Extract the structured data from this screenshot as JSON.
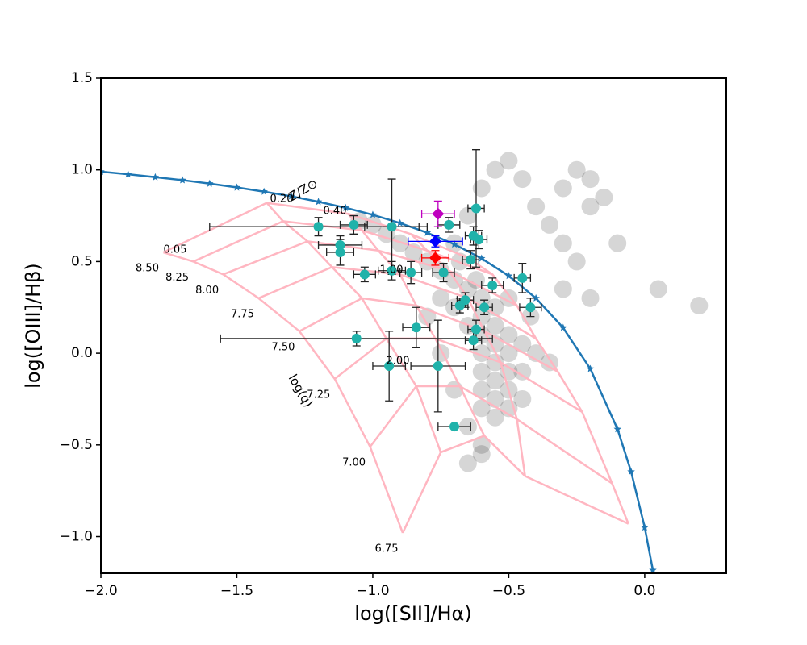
{
  "chart_data": {
    "type": "scatter",
    "xlabel": "log([SII]/Hα)",
    "ylabel": "log([OIII]/Hβ)",
    "xlim": [
      -2.0,
      0.3
    ],
    "ylim": [
      -1.2,
      1.5
    ],
    "xticks": [
      {
        "value": -2.0,
        "label": "−2.0"
      },
      {
        "value": -1.5,
        "label": "−1.5"
      },
      {
        "value": -1.0,
        "label": "−1.0"
      },
      {
        "value": -0.5,
        "label": "−0.5"
      },
      {
        "value": 0.0,
        "label": "0.0"
      }
    ],
    "yticks": [
      {
        "value": -1.0,
        "label": "−1.0"
      },
      {
        "value": -0.5,
        "label": "−0.5"
      },
      {
        "value": 0.0,
        "label": "0.0"
      },
      0.5,
      {
        "value": 1.0,
        "label": "1.0"
      },
      1.5
    ],
    "annotations": [
      "Z/Z⊙",
      "log(q)"
    ],
    "background": {
      "color": "#333333",
      "x": [
        -0.85,
        -0.8,
        -0.75,
        -0.7,
        -0.65,
        -0.6,
        -0.55,
        -0.6,
        -0.55,
        -0.5,
        -0.6,
        -0.55,
        -0.5,
        -0.6,
        -0.55,
        -0.5,
        -0.6,
        -0.55,
        -0.5,
        -0.6,
        -0.55,
        -0.5,
        -0.55,
        -0.6,
        -0.45,
        -0.45,
        -0.65,
        -0.7,
        -0.75,
        -0.9,
        -0.95,
        -1.0,
        -1.05,
        -0.68,
        -0.62,
        -0.5,
        -0.42,
        -0.4,
        -0.45,
        -0.65,
        -0.6,
        -0.7,
        -0.75,
        -0.8,
        -0.3,
        -0.25,
        -0.2,
        -0.35,
        -0.3,
        -0.4,
        -0.45,
        -0.5,
        -0.55,
        -0.2,
        -0.15,
        -0.25,
        -0.1,
        -0.3,
        -0.2,
        -0.35,
        0.05,
        0.2,
        -0.6,
        -0.65,
        -0.7,
        -0.65,
        -0.6
      ],
      "y": [
        0.55,
        0.5,
        0.45,
        0.4,
        0.35,
        0.3,
        0.25,
        0.2,
        0.15,
        0.1,
        0.1,
        0.05,
        0.0,
        0.0,
        -0.05,
        -0.1,
        -0.1,
        -0.15,
        -0.2,
        -0.2,
        -0.25,
        -0.3,
        -0.35,
        -0.3,
        -0.1,
        0.05,
        0.15,
        0.25,
        0.3,
        0.6,
        0.65,
        0.7,
        0.72,
        0.5,
        0.4,
        0.3,
        0.2,
        0.0,
        -0.25,
        -0.4,
        -0.5,
        -0.2,
        0.0,
        0.2,
        0.9,
        1.0,
        0.95,
        0.7,
        0.6,
        0.8,
        0.95,
        1.05,
        1.0,
        0.8,
        0.85,
        0.5,
        0.6,
        0.35,
        0.3,
        -0.05,
        0.35,
        0.26,
        -0.55,
        -0.6,
        0.6,
        0.75,
        0.9
      ]
    },
    "demarcation": {
      "color": "#1f77b4",
      "x": [
        -2.0,
        -1.9,
        -1.8,
        -1.7,
        -1.6,
        -1.5,
        -1.4,
        -1.3,
        -1.2,
        -1.1,
        -1.0,
        -0.9,
        -0.8,
        -0.7,
        -0.6,
        -0.5,
        -0.4,
        -0.3,
        -0.2,
        -0.1,
        -0.05,
        0.0,
        0.03
      ],
      "y": [
        0.99,
        0.976,
        0.96,
        0.944,
        0.925,
        0.904,
        0.881,
        0.856,
        0.826,
        0.793,
        0.755,
        0.71,
        0.657,
        0.594,
        0.517,
        0.422,
        0.3,
        0.139,
        -0.085,
        -0.414,
        -0.646,
        -0.95,
        -1.183
      ]
    },
    "model_grid": {
      "color": "#ffb6c1",
      "metallicity_labels": [
        "0.05",
        "0.20",
        "0.40",
        "1.00",
        "2.00"
      ],
      "q_labels": [
        "8.50",
        "8.25",
        "8.00",
        "7.75",
        "7.50",
        "7.25",
        "7.00",
        "6.75"
      ],
      "lines": [
        {
          "x": [
            -1.77,
            -1.66,
            -1.55,
            -1.42,
            -1.27,
            -1.14,
            -1.01,
            -0.89
          ],
          "y": [
            0.55,
            0.5,
            0.43,
            0.3,
            0.12,
            -0.14,
            -0.51,
            -0.98
          ]
        },
        {
          "x": [
            -1.39,
            -1.33,
            -1.24,
            -1.15,
            -1.04,
            -0.95,
            -0.84,
            -0.75
          ],
          "y": [
            0.82,
            0.72,
            0.61,
            0.47,
            0.3,
            0.08,
            -0.18,
            -0.54
          ]
        },
        {
          "x": [
            -1.09,
            -1.04,
            -0.98,
            -0.9,
            -0.84,
            -0.77,
            -0.68,
            -0.59
          ],
          "y": [
            0.76,
            0.67,
            0.56,
            0.43,
            0.26,
            0.08,
            -0.18,
            -0.45
          ]
        },
        {
          "x": [
            -0.86,
            -0.8,
            -0.72,
            -0.65,
            -0.59,
            -0.53,
            -0.47,
            -0.44
          ],
          "y": [
            0.65,
            0.56,
            0.45,
            0.3,
            0.12,
            -0.05,
            -0.36,
            -0.67
          ]
        },
        {
          "x": [
            -0.65,
            -0.56,
            -0.47,
            -0.4,
            -0.32,
            -0.23,
            -0.12,
            -0.06
          ],
          "y": [
            0.52,
            0.43,
            0.26,
            0.08,
            -0.1,
            -0.32,
            -0.71,
            -0.93
          ]
        }
      ]
    },
    "points": {
      "color": "#20b2aa",
      "x": [
        -1.2,
        -1.07,
        -0.93,
        -1.12,
        -1.12,
        -1.03,
        -0.93,
        -0.86,
        -0.74,
        -0.62,
        -0.63,
        -0.61,
        -0.72,
        -0.64,
        -0.56,
        -0.45,
        -0.42,
        -0.59,
        -0.66,
        -0.68,
        -0.62,
        -0.63,
        -1.06,
        -0.84,
        -0.94,
        -0.76,
        -0.7
      ],
      "y": [
        0.69,
        0.7,
        0.69,
        0.59,
        0.55,
        0.43,
        0.45,
        0.44,
        0.44,
        0.79,
        0.64,
        0.62,
        0.7,
        0.51,
        0.37,
        0.41,
        0.25,
        0.25,
        0.29,
        0.26,
        0.13,
        0.07,
        0.08,
        0.14,
        -0.07,
        -0.07,
        -0.4
      ],
      "xerr": [
        0.4,
        0.05,
        0.1,
        0.08,
        0.05,
        0.04,
        0.05,
        0.04,
        0.04,
        0.03,
        0.03,
        0.03,
        0.04,
        0.03,
        0.04,
        0.03,
        0.04,
        0.03,
        0.03,
        0.03,
        0.03,
        0.03,
        0.5,
        0.05,
        0.06,
        0.1,
        0.06
      ],
      "yerr": [
        0.05,
        0.05,
        0.26,
        0.05,
        0.07,
        0.04,
        0.05,
        0.06,
        0.05,
        0.32,
        0.05,
        0.05,
        0.04,
        0.05,
        0.04,
        0.08,
        0.05,
        0.04,
        0.04,
        0.04,
        0.05,
        0.05,
        0.04,
        0.11,
        0.19,
        0.25,
        0.01
      ]
    },
    "highlighted": [
      {
        "color": "#bf00bf",
        "x": -0.76,
        "y": 0.76,
        "xerr": 0.06,
        "yerr": 0.07
      },
      {
        "color": "#0000ff",
        "x": -0.77,
        "y": 0.61,
        "xerr": 0.1,
        "yerr": 0.03
      },
      {
        "color": "#ff0000",
        "x": -0.77,
        "y": 0.52,
        "xerr": 0.05,
        "yerr": 0.04
      }
    ]
  }
}
